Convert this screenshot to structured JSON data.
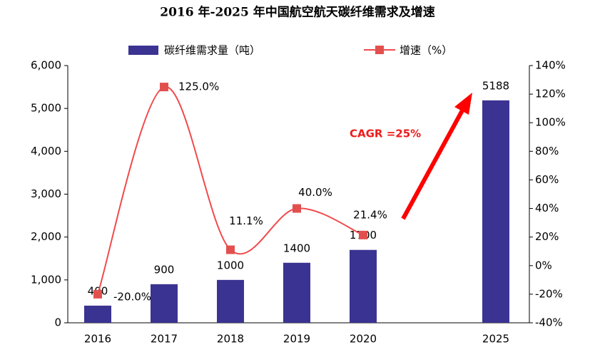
{
  "chart_data": {
    "type": "bar",
    "title": "2016 年-2025 年中国航空航天碳纤维需求及增速",
    "categories": [
      "2016",
      "2017",
      "2018",
      "2019",
      "2020",
      null,
      "2025"
    ],
    "series": [
      {
        "name": "碳纤维需求量（吨）",
        "type": "bar",
        "color": "#3b3391",
        "values": [
          400,
          900,
          1000,
          1400,
          1700,
          null,
          5188
        ]
      },
      {
        "name": "增速（%）",
        "type": "line",
        "axis": "y2",
        "color": "#f04a4c",
        "smooth": true,
        "values": [
          -20,
          125,
          11.1,
          40,
          21.4,
          null,
          null
        ],
        "value_labels": [
          "-20.0%",
          "125.0%",
          "11.1%",
          "40.0%",
          "21.4%",
          null,
          null
        ]
      }
    ],
    "ylim": [
      0,
      6000
    ],
    "yticks": [
      0,
      {
        "value": 1000,
        "label": "1,000"
      },
      {
        "value": 2000,
        "label": "2,000"
      },
      {
        "value": 3000,
        "label": "3,000"
      },
      {
        "value": 4000,
        "label": "4,000"
      },
      {
        "value": 5000,
        "label": "5,000"
      },
      {
        "value": 6000,
        "label": "6,000"
      }
    ],
    "y2lim": [
      -40,
      140
    ],
    "y2ticks": [
      {
        "value": -40,
        "label": "-40%"
      },
      {
        "value": -20,
        "label": "-20%"
      },
      {
        "value": 0,
        "label": "0%"
      },
      {
        "value": 20,
        "label": "20%"
      },
      {
        "value": 40,
        "label": "40%"
      },
      {
        "value": 60,
        "label": "60%"
      },
      {
        "value": 80,
        "label": "80%"
      },
      {
        "value": 100,
        "label": "100%"
      },
      {
        "value": 120,
        "label": "120%"
      },
      {
        "value": 140,
        "label": "140%"
      }
    ],
    "annotations": [
      "CAGR =25%"
    ]
  }
}
